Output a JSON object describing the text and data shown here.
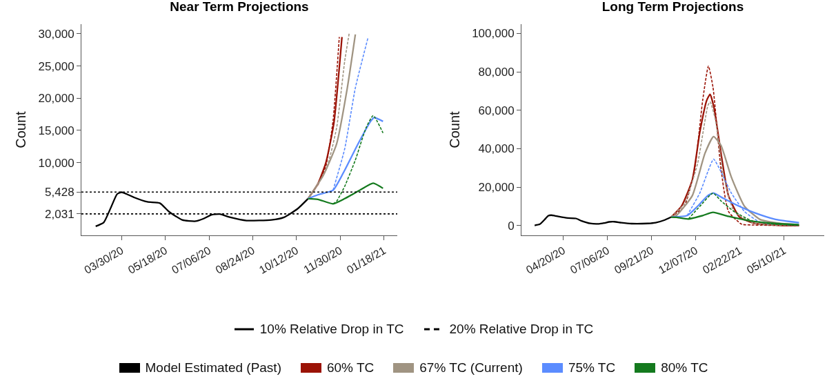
{
  "chart_data": [
    {
      "type": "line",
      "title": "Near Term Projections",
      "ylabel": "Count",
      "legend": "bottom",
      "grid": false,
      "annotations": [
        "10% Relative Drop in TC",
        "20% Relative Drop in TC"
      ],
      "xlim": [
        "2020-02-14",
        "2021-02-02"
      ],
      "xticks": [
        {
          "value": "2020-03-30",
          "label": "03/30/20"
        },
        {
          "value": "2020-05-18",
          "label": "05/18/20"
        },
        {
          "value": "2020-07-06",
          "label": "07/06/20"
        },
        {
          "value": "2020-08-24",
          "label": "08/24/20"
        },
        {
          "value": "2020-10-12",
          "label": "10/12/20"
        },
        {
          "value": "2020-11-30",
          "label": "11/30/20"
        },
        {
          "value": "2021-01-18",
          "label": "01/18/21"
        }
      ],
      "ylim": [
        -1300,
        31500
      ],
      "yticks": [
        {
          "value": 2031,
          "label": "2,031"
        },
        {
          "value": 5428,
          "label": "5,428"
        },
        {
          "value": 10000,
          "label": "10,000"
        },
        {
          "value": 15000,
          "label": "15,000"
        },
        {
          "value": 20000,
          "label": "20,000"
        },
        {
          "value": 25000,
          "label": "25,000"
        },
        {
          "value": 30000,
          "label": "30,000"
        }
      ],
      "ref_lines": [
        {
          "axis": "y",
          "value": 5428,
          "line_style": "dotted",
          "color": "#000000"
        },
        {
          "axis": "y",
          "value": 2031,
          "line_style": "dotted",
          "color": "#000000"
        }
      ],
      "series": [
        {
          "name": "Model Estimated (Past)",
          "color": "#000000",
          "line_style": "solid",
          "x": [
            "2020-03-01",
            "2020-03-10",
            "2020-03-18",
            "2020-03-25",
            "2020-03-30",
            "2020-04-05",
            "2020-04-13",
            "2020-04-28",
            "2020-05-12",
            "2020-05-22",
            "2020-06-06",
            "2020-06-21",
            "2020-06-30",
            "2020-07-09",
            "2020-07-18",
            "2020-07-30",
            "2020-08-17",
            "2020-09-14",
            "2020-09-28",
            "2020-10-13",
            "2020-10-25"
          ],
          "values": [
            100,
            700,
            3000,
            5100,
            5400,
            5100,
            4600,
            3900,
            3700,
            2400,
            1100,
            900,
            1300,
            1900,
            2000,
            1500,
            1000,
            1100,
            1500,
            2800,
            4400
          ]
        },
        {
          "name": "60% TC",
          "color": "#9b1306",
          "line_style": "solid",
          "x": [
            "2020-10-25",
            "2020-11-05",
            "2020-11-14",
            "2020-11-23",
            "2020-12-02"
          ],
          "values": [
            4400,
            6700,
            10000,
            16200,
            29500
          ]
        },
        {
          "color": "#9b1306",
          "line_style": "dashed",
          "x": [
            "2020-11-05",
            "2020-11-14",
            "2020-11-22",
            "2020-11-29"
          ],
          "values": [
            6500,
            9500,
            16500,
            29500
          ]
        },
        {
          "name": "67% TC (Current)",
          "color": "#a09482",
          "line_style": "solid",
          "x": [
            "2020-10-25",
            "2020-11-11",
            "2020-11-26",
            "2020-12-08",
            "2020-12-17"
          ],
          "values": [
            4400,
            8000,
            12900,
            21600,
            29900
          ]
        },
        {
          "color": "#a09482",
          "line_style": "dashed",
          "x": [
            "2020-10-25",
            "2020-11-14",
            "2020-11-26",
            "2020-12-05",
            "2020-12-10"
          ],
          "values": [
            4400,
            8800,
            15400,
            25700,
            30000
          ]
        },
        {
          "name": "75% TC",
          "color": "#5b8cff",
          "line_style": "solid",
          "x": [
            "2020-10-25",
            "2020-11-05",
            "2020-11-22",
            "2020-12-05",
            "2020-12-20",
            "2021-01-03",
            "2021-01-07",
            "2021-01-17"
          ],
          "values": [
            4400,
            5000,
            5700,
            8800,
            12900,
            16400,
            17000,
            16400
          ]
        },
        {
          "color": "#5b8cff",
          "line_style": "dashed",
          "x": [
            "2020-11-22",
            "2020-12-05",
            "2020-12-17",
            "2020-12-31"
          ],
          "values": [
            5700,
            12100,
            21600,
            29300
          ]
        },
        {
          "name": "80% TC",
          "color": "#147a1e",
          "line_style": "solid",
          "x": [
            "2020-10-25",
            "2020-11-05",
            "2020-11-22",
            "2020-12-05",
            "2020-12-23",
            "2021-01-06",
            "2021-01-17"
          ],
          "values": [
            4400,
            4300,
            3600,
            4400,
            5800,
            6800,
            6000
          ]
        },
        {
          "color": "#147a1e",
          "line_style": "dashed",
          "x": [
            "2020-11-22",
            "2020-11-26",
            "2020-12-05",
            "2020-12-17",
            "2020-12-29",
            "2021-01-06",
            "2021-01-17"
          ],
          "values": [
            3600,
            4000,
            6300,
            10400,
            15400,
            17300,
            14600
          ]
        }
      ]
    },
    {
      "type": "line",
      "title": "Long Term Projections",
      "ylabel": "Count",
      "legend": "bottom",
      "grid": false,
      "xlim": [
        "2020-02-07",
        "2021-07-19"
      ],
      "xticks": [
        {
          "value": "2020-04-20",
          "label": "04/20/20"
        },
        {
          "value": "2020-07-06",
          "label": "07/06/20"
        },
        {
          "value": "2020-09-21",
          "label": "09/21/20"
        },
        {
          "value": "2020-12-07",
          "label": "12/07/20"
        },
        {
          "value": "2021-02-22",
          "label": "02/22/21"
        },
        {
          "value": "2021-05-10",
          "label": "05/10/21"
        }
      ],
      "ylim": [
        -5100,
        104800
      ],
      "yticks": [
        0,
        {
          "value": 20000,
          "label": "20,000"
        },
        {
          "value": 40000,
          "label": "40,000"
        },
        {
          "value": 60000,
          "label": "60,000"
        },
        {
          "value": 80000,
          "label": "80,000"
        },
        {
          "value": 100000,
          "label": "100,000"
        }
      ],
      "series": [
        {
          "name": "Model Estimated (Past)",
          "color": "#000000",
          "line_style": "solid",
          "x": [
            "2020-03-01",
            "2020-03-10",
            "2020-03-18",
            "2020-03-25",
            "2020-03-30",
            "2020-04-05",
            "2020-04-13",
            "2020-04-28",
            "2020-05-12",
            "2020-05-22",
            "2020-06-06",
            "2020-06-21",
            "2020-06-30",
            "2020-07-09",
            "2020-07-18",
            "2020-07-30",
            "2020-08-17",
            "2020-09-14",
            "2020-09-28",
            "2020-10-13",
            "2020-10-25"
          ],
          "values": [
            100,
            700,
            3000,
            5100,
            5400,
            5100,
            4600,
            3900,
            3700,
            2400,
            1100,
            900,
            1300,
            1900,
            2000,
            1500,
            1000,
            1100,
            1500,
            2800,
            4400
          ]
        },
        {
          "name": "60% TC",
          "color": "#9b1306",
          "line_style": "solid",
          "x": [
            "2020-10-25",
            "2020-11-12",
            "2020-12-01",
            "2020-12-14",
            "2020-12-26",
            "2021-01-01",
            "2021-01-08",
            "2021-01-20",
            "2021-02-02",
            "2021-02-21",
            "2021-03-20",
            "2021-05-04",
            "2021-06-05"
          ],
          "values": [
            4400,
            10000,
            23800,
            48600,
            65100,
            68300,
            61000,
            37600,
            15600,
            4500,
            1100,
            100,
            0
          ]
        },
        {
          "color": "#9b1306",
          "line_style": "dashed",
          "x": [
            "2020-10-25",
            "2020-11-17",
            "2020-12-05",
            "2020-12-19",
            "2020-12-29",
            "2021-01-06",
            "2021-01-20",
            "2021-02-02",
            "2021-02-25",
            "2021-03-15",
            "2021-06-05"
          ],
          "values": [
            4400,
            10000,
            29300,
            65100,
            83000,
            72000,
            29300,
            7300,
            700,
            300,
            0
          ]
        },
        {
          "name": "67% TC (Current)",
          "color": "#a09482",
          "line_style": "solid",
          "x": [
            "2020-10-25",
            "2020-11-03",
            "2020-12-01",
            "2020-12-23",
            "2021-01-07",
            "2021-01-20",
            "2021-02-07",
            "2021-03-02",
            "2021-03-29",
            "2021-05-04",
            "2021-06-05"
          ],
          "values": [
            4400,
            5200,
            15600,
            37600,
            46300,
            41700,
            25200,
            10000,
            3200,
            1100,
            400
          ]
        },
        {
          "color": "#a09482",
          "line_style": "dashed",
          "x": [
            "2020-10-25",
            "2020-11-17",
            "2020-12-10",
            "2020-12-28",
            "2021-01-01",
            "2021-01-11",
            "2021-01-24",
            "2021-02-12",
            "2021-03-20",
            "2021-06-05"
          ],
          "values": [
            4400,
            11400,
            32100,
            62400,
            64400,
            54100,
            26600,
            7300,
            1100,
            100
          ]
        },
        {
          "name": "75% TC",
          "color": "#5b8cff",
          "line_style": "solid",
          "x": [
            "2020-10-25",
            "2020-11-22",
            "2020-12-10",
            "2020-12-28",
            "2021-01-07",
            "2021-01-24",
            "2021-02-16",
            "2021-03-20",
            "2021-04-25",
            "2021-06-05"
          ],
          "values": [
            4400,
            5200,
            10000,
            15600,
            16900,
            14200,
            10700,
            6600,
            3200,
            1500
          ]
        },
        {
          "color": "#5b8cff",
          "line_style": "dashed",
          "x": [
            "2020-11-22",
            "2020-11-26",
            "2020-12-14",
            "2020-12-28",
            "2021-01-07",
            "2021-01-20",
            "2021-02-07",
            "2021-03-02",
            "2021-03-29",
            "2021-06-05"
          ],
          "values": [
            5200,
            7300,
            16900,
            28000,
            34600,
            28000,
            16900,
            7300,
            1800,
            100
          ]
        },
        {
          "name": "80% TC",
          "color": "#147a1e",
          "line_style": "solid",
          "x": [
            "2020-10-25",
            "2020-11-03",
            "2020-11-24",
            "2020-12-19",
            "2021-01-06",
            "2021-02-02",
            "2021-03-11",
            "2021-04-25",
            "2021-06-05"
          ],
          "values": [
            4400,
            4300,
            3400,
            5200,
            6900,
            4800,
            2500,
            1100,
            400
          ]
        },
        {
          "color": "#147a1e",
          "line_style": "dashed",
          "x": [
            "2020-11-24",
            "2020-12-14",
            "2021-01-06",
            "2021-01-20",
            "2021-02-12",
            "2021-03-15",
            "2021-04-25",
            "2021-06-05"
          ],
          "values": [
            3400,
            10000,
            16900,
            12800,
            7300,
            2500,
            700,
            100
          ]
        }
      ]
    }
  ]
}
